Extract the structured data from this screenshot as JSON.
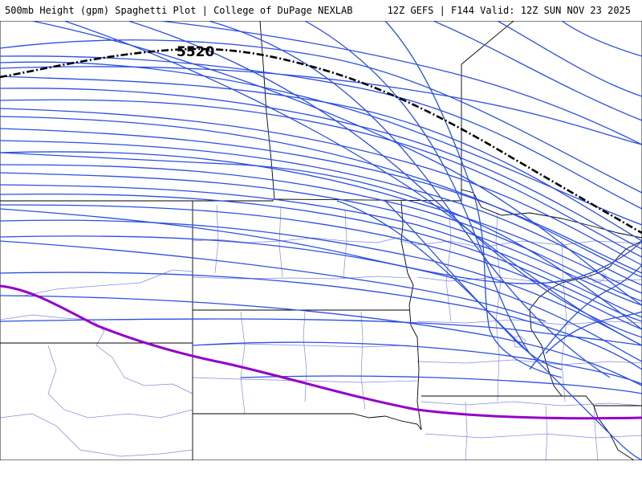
{
  "header": {
    "title": "500mb Height (gpm) Spaghetti Plot | College of DuPage NEXLAB",
    "run": "12Z GEFS | F144 Valid: 12Z SUN NOV 23 2025"
  },
  "contour_label": "5520",
  "colors": {
    "members": "#2b4fe0",
    "mean": "#000000",
    "climatology": "#9400c8",
    "state_borders": "#000000",
    "county_borders": "#7777dd"
  }
}
